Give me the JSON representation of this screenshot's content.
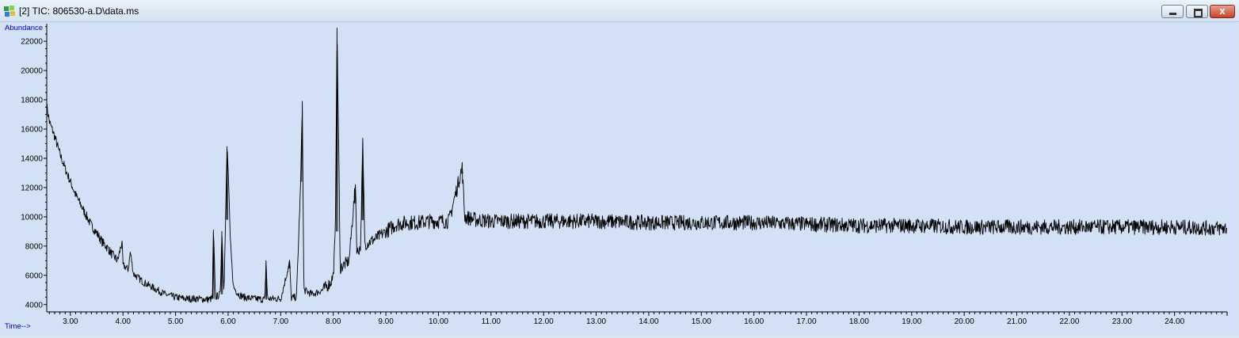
{
  "window": {
    "title": "[2] TIC: 806530-a.D\\data.ms",
    "close_label": "x",
    "colors": {
      "plot_background": "#d2e1f6",
      "trace": "#000000",
      "axis_title": "#0000cc"
    }
  },
  "chart_data": {
    "type": "line",
    "title": "",
    "xlabel": "Time-->",
    "ylabel": "Abundance",
    "xlim": [
      2.55,
      25.0
    ],
    "ylim": [
      3500,
      23200
    ],
    "grid": false,
    "x_ticks": [
      3.0,
      4.0,
      5.0,
      6.0,
      7.0,
      8.0,
      9.0,
      10.0,
      11.0,
      12.0,
      13.0,
      14.0,
      15.0,
      16.0,
      17.0,
      18.0,
      19.0,
      20.0,
      21.0,
      22.0,
      23.0,
      24.0
    ],
    "x_tick_labels": [
      "3.00",
      "4.00",
      "5.00",
      "6.00",
      "7.00",
      "8.00",
      "9.00",
      "10.00",
      "11.00",
      "12.00",
      "13.00",
      "14.00",
      "15.00",
      "16.00",
      "17.00",
      "18.00",
      "19.00",
      "20.00",
      "21.00",
      "22.00",
      "23.00",
      "24.00"
    ],
    "y_ticks": [
      4000,
      6000,
      8000,
      10000,
      12000,
      14000,
      16000,
      18000,
      20000,
      22000
    ],
    "y_tick_labels": [
      "4000",
      "6000",
      "8000",
      "10000",
      "12000",
      "14000",
      "16000",
      "18000",
      "20000",
      "22000"
    ],
    "series": [
      {
        "points": [
          [
            2.55,
            17600
          ],
          [
            2.6,
            16500
          ],
          [
            2.7,
            15500
          ],
          [
            2.8,
            14300
          ],
          [
            2.9,
            13300
          ],
          [
            3.0,
            12400
          ],
          [
            3.1,
            11500
          ],
          [
            3.2,
            10800
          ],
          [
            3.3,
            10100
          ],
          [
            3.4,
            9400
          ],
          [
            3.5,
            8900
          ],
          [
            3.6,
            8300
          ],
          [
            3.7,
            7900
          ],
          [
            3.8,
            7400
          ],
          [
            3.9,
            7000
          ],
          [
            3.98,
            8300
          ],
          [
            4.0,
            6700
          ],
          [
            4.1,
            6400
          ],
          [
            4.14,
            7600
          ],
          [
            4.2,
            6100
          ],
          [
            4.3,
            5800
          ],
          [
            4.4,
            5500
          ],
          [
            4.5,
            5300
          ],
          [
            4.6,
            5100
          ],
          [
            4.7,
            4900
          ],
          [
            4.8,
            4700
          ],
          [
            4.9,
            4600
          ],
          [
            5.0,
            4500
          ],
          [
            5.2,
            4400
          ],
          [
            5.4,
            4400
          ],
          [
            5.6,
            4350
          ],
          [
            5.7,
            4400
          ],
          [
            5.72,
            9100
          ],
          [
            5.76,
            4500
          ],
          [
            5.85,
            4700
          ],
          [
            5.88,
            9000
          ],
          [
            5.92,
            4800
          ],
          [
            5.98,
            14800
          ],
          [
            6.01,
            12300
          ],
          [
            6.04,
            8400
          ],
          [
            6.1,
            5200
          ],
          [
            6.2,
            4700
          ],
          [
            6.3,
            4500
          ],
          [
            6.5,
            4400
          ],
          [
            6.7,
            4350
          ],
          [
            6.72,
            7000
          ],
          [
            6.75,
            4400
          ],
          [
            6.9,
            4400
          ],
          [
            7.0,
            4400
          ],
          [
            7.17,
            6900
          ],
          [
            7.2,
            4450
          ],
          [
            7.3,
            4500
          ],
          [
            7.38,
            12400
          ],
          [
            7.41,
            17900
          ],
          [
            7.44,
            5000
          ],
          [
            7.6,
            4700
          ],
          [
            7.8,
            5000
          ],
          [
            7.95,
            5500
          ],
          [
            8.0,
            6000
          ],
          [
            8.04,
            9000
          ],
          [
            8.07,
            22900
          ],
          [
            8.1,
            15600
          ],
          [
            8.13,
            6500
          ],
          [
            8.3,
            7000
          ],
          [
            8.42,
            12200
          ],
          [
            8.45,
            7500
          ],
          [
            8.52,
            8000
          ],
          [
            8.56,
            15100
          ],
          [
            8.6,
            8100
          ],
          [
            8.8,
            8500
          ],
          [
            9.0,
            9000
          ],
          [
            9.2,
            9500
          ],
          [
            9.4,
            9600
          ],
          [
            9.6,
            9600
          ],
          [
            9.8,
            9700
          ],
          [
            10.0,
            9700
          ],
          [
            10.2,
            9700
          ],
          [
            10.45,
            13400
          ],
          [
            10.5,
            10000
          ],
          [
            10.7,
            9800
          ],
          [
            11.0,
            9700
          ],
          [
            12.0,
            9700
          ],
          [
            13.0,
            9700
          ],
          [
            14.0,
            9600
          ],
          [
            15.0,
            9600
          ],
          [
            16.0,
            9600
          ],
          [
            17.0,
            9500
          ],
          [
            18.0,
            9400
          ],
          [
            19.0,
            9400
          ],
          [
            20.0,
            9300
          ],
          [
            21.0,
            9300
          ],
          [
            22.0,
            9300
          ],
          [
            23.0,
            9300
          ],
          [
            24.0,
            9300
          ],
          [
            25.0,
            9200
          ]
        ]
      }
    ]
  }
}
